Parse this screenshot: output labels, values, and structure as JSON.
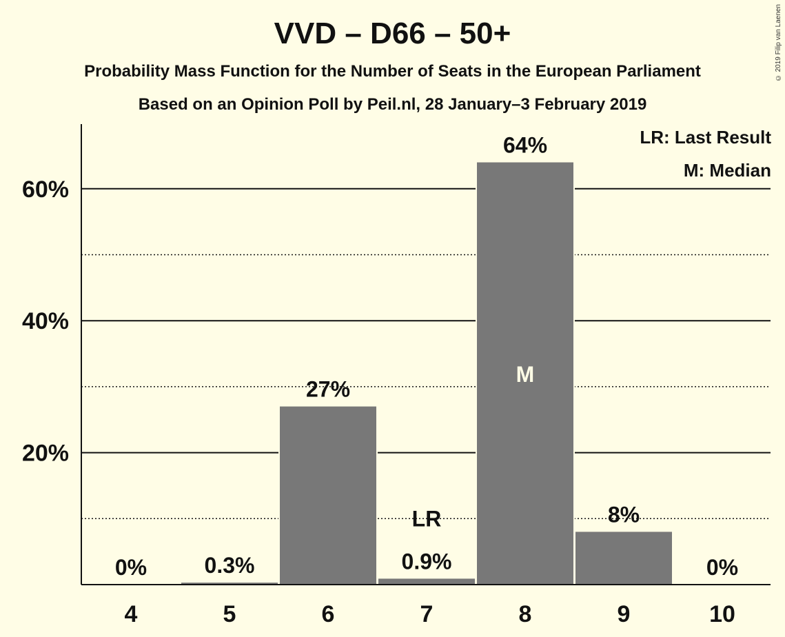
{
  "title": "VVD – D66 – 50+",
  "subtitle": "Probability Mass Function for the Number of Seats in the European Parliament",
  "subtitle2": "Based on an Opinion Poll by Peil.nl, 28 January–3 February 2019",
  "copyright": "© 2019 Filip van Laenen",
  "legend": {
    "lr": "LR: Last Result",
    "m": "M: Median"
  },
  "colors": {
    "background": "#fffde6",
    "bar": "#787878",
    "text": "#111111"
  },
  "chart_data": {
    "type": "bar",
    "categories": [
      "4",
      "5",
      "6",
      "7",
      "8",
      "9",
      "10"
    ],
    "values": [
      0,
      0.3,
      27,
      0.9,
      64,
      8,
      0
    ],
    "data_labels": [
      "0%",
      "0.3%",
      "27%",
      "0.9%",
      "64%",
      "8%",
      "0%"
    ],
    "ylim": [
      0,
      70
    ],
    "yticks": [
      20,
      40,
      60
    ],
    "ytick_labels": [
      "20%",
      "40%",
      "60%"
    ],
    "minor_gridlines": [
      10,
      30,
      50
    ],
    "last_result_category": "7",
    "last_result_label": "LR",
    "median_category": "8",
    "median_label": "M",
    "xlabel": "",
    "ylabel": "",
    "grid": true
  }
}
